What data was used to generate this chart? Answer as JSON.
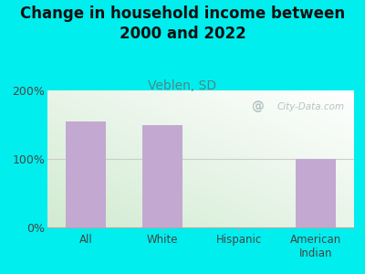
{
  "title": "Change in household income between\n2000 and 2022",
  "subtitle": "Veblen, SD",
  "categories": [
    "All",
    "White",
    "Hispanic",
    "American\nIndian"
  ],
  "values": [
    155,
    150,
    0,
    100
  ],
  "bar_color": "#C3A8D1",
  "background_color": "#00EEEE",
  "ylim": [
    0,
    200
  ],
  "yticks": [
    0,
    100,
    200
  ],
  "ytick_labels": [
    "0%",
    "100%",
    "200%"
  ],
  "title_fontsize": 12,
  "subtitle_fontsize": 10,
  "subtitle_color": "#4A8A8A",
  "title_color": "#111111",
  "tick_color": "#444444",
  "watermark": "City-Data.com",
  "watermark_color": "#AABBBB",
  "grid_color": "#CCCCCC",
  "spine_color": "#AAAAAA"
}
